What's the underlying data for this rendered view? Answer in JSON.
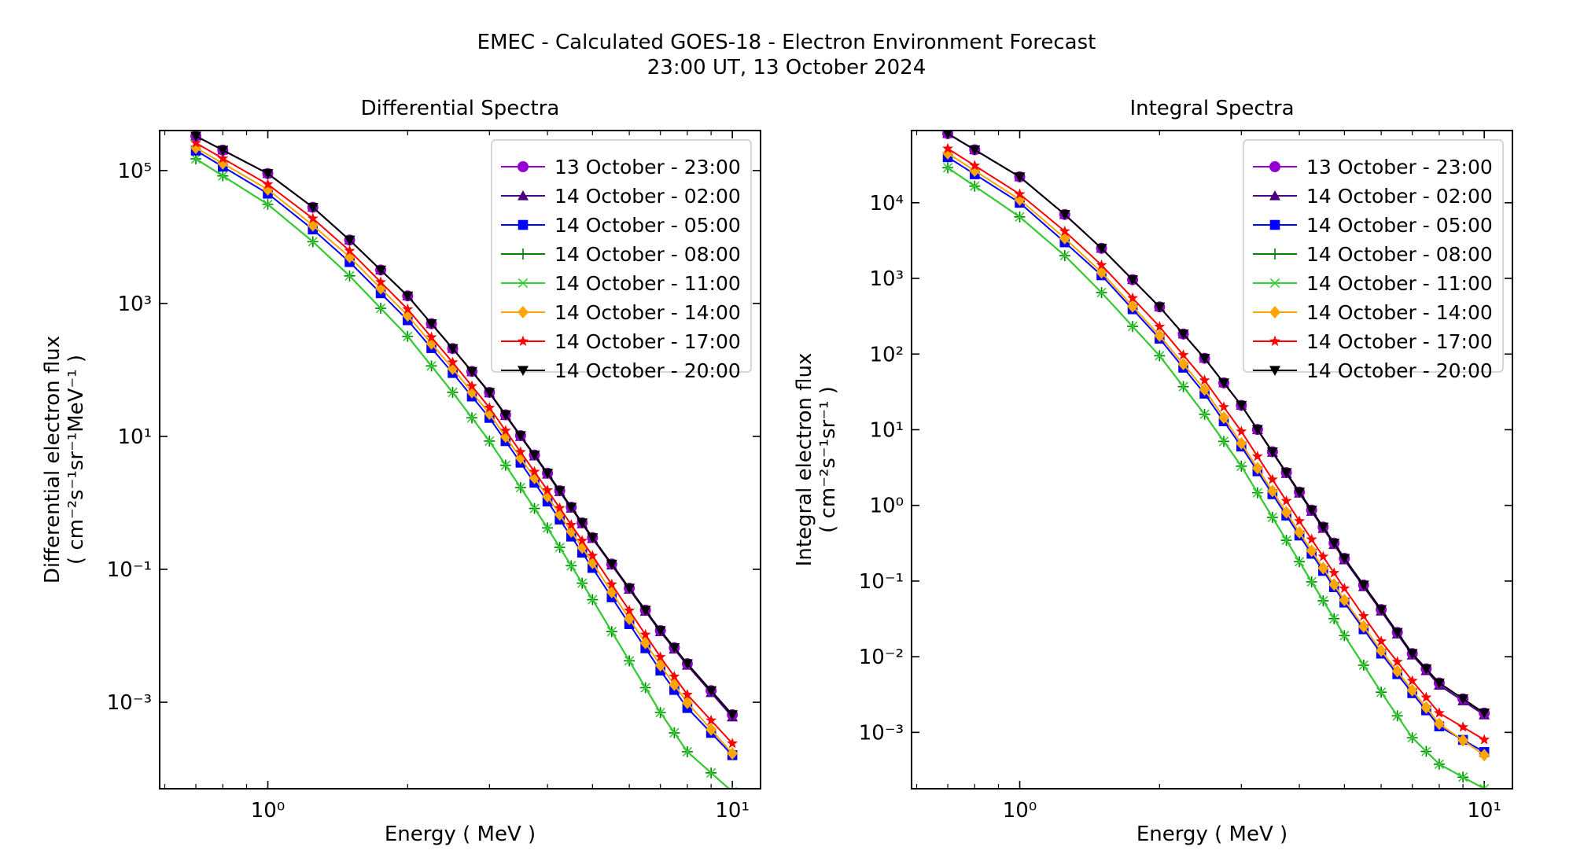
{
  "figure": {
    "title_line1": "EMEC - Calculated GOES-18 - Electron Environment Forecast",
    "title_line2": "23:00 UT, 13 October 2024"
  },
  "legend": [
    {
      "label": "13 October - 23:00",
      "color": "#9400d3",
      "marker": "circle"
    },
    {
      "label": "14 October - 02:00",
      "color": "#4b0082",
      "marker": "triangle-up"
    },
    {
      "label": "14 October - 05:00",
      "color": "#0000ff",
      "marker": "square"
    },
    {
      "label": "14 October - 08:00",
      "color": "#008000",
      "marker": "plus"
    },
    {
      "label": "14 October - 11:00",
      "color": "#32cd32",
      "marker": "x"
    },
    {
      "label": "14 October - 14:00",
      "color": "#ffa500",
      "marker": "diamond"
    },
    {
      "label": "14 October - 17:00",
      "color": "#ff0000",
      "marker": "star"
    },
    {
      "label": "14 October - 20:00",
      "color": "#000000",
      "marker": "triangle-down"
    }
  ],
  "chart_data": [
    {
      "type": "line",
      "title": "Differential Spectra",
      "xlabel": "Energy ( MeV )",
      "ylabel_line1": "Differential electron flux",
      "ylabel_line2": "( cm⁻²s⁻¹sr⁻¹MeV⁻¹ )",
      "xscale": "log",
      "yscale": "log",
      "xlim": [
        0.585,
        11.5
      ],
      "ylim": [
        5e-05,
        400000
      ],
      "xticks": [
        1,
        10
      ],
      "xtick_labels": [
        "10⁰",
        "10¹"
      ],
      "yticks": [
        0.001,
        0.1,
        10,
        1000,
        100000
      ],
      "ytick_labels": [
        "10⁻³",
        "10⁻¹",
        "10¹",
        "10³",
        "10⁵"
      ],
      "legend_position": "upper right",
      "x": [
        0.7,
        0.8,
        1.0,
        1.25,
        1.5,
        1.75,
        2.0,
        2.25,
        2.5,
        2.75,
        3.0,
        3.25,
        3.5,
        3.75,
        4.0,
        4.25,
        4.5,
        4.75,
        5.0,
        5.5,
        6.0,
        6.5,
        7.0,
        7.5,
        8.0,
        9.0,
        10.0
      ],
      "anchors": {
        "x": [
          0.7,
          1.0,
          1.25,
          1.5,
          2.0,
          2.5,
          3.0,
          4.0,
          5.0,
          6.0,
          7.0,
          8.0,
          10.0
        ],
        "series": [
          {
            "name": "13 October - 23:00",
            "y": [
              330000,
              90000,
              28000,
              9000,
              1300,
              210,
              46,
              2.8,
              0.3,
              0.052,
              0.012,
              0.0038,
              0.00065
            ]
          },
          {
            "name": "14 October - 02:00",
            "y": [
              330000,
              90000,
              28000,
              9000,
              1300,
              210,
              45,
              2.7,
              0.29,
              0.05,
              0.0115,
              0.0036,
              0.0006
            ]
          },
          {
            "name": "14 October - 05:00",
            "y": [
              200000,
              45000,
              13000,
              4200,
              560,
              90,
              19,
              1.05,
              0.105,
              0.015,
              0.003,
              0.00082,
              0.00016
            ]
          },
          {
            "name": "14 October - 08:00",
            "y": [
              150000,
              31000,
              8500,
              2600,
              320,
              46,
              8.5,
              0.42,
              0.035,
              0.0042,
              0.0007,
              0.00018,
              4.5e-05
            ]
          },
          {
            "name": "14 October - 11:00",
            "y": [
              150000,
              31000,
              8500,
              2600,
              320,
              46,
              8.5,
              0.42,
              0.035,
              0.0042,
              0.0007,
              0.00018,
              4.5e-05
            ]
          },
          {
            "name": "14 October - 14:00",
            "y": [
              220000,
              52000,
              15000,
              5000,
              660,
              105,
              22,
              1.25,
              0.125,
              0.018,
              0.0036,
              0.00098,
              0.00017
            ]
          },
          {
            "name": "14 October - 17:00",
            "y": [
              260000,
              62000,
              19000,
              6200,
              820,
              130,
              27,
              1.55,
              0.16,
              0.024,
              0.0048,
              0.0013,
              0.00024
            ]
          },
          {
            "name": "14 October - 20:00",
            "y": [
              330000,
              90000,
              28000,
              9000,
              1300,
              210,
              46,
              2.8,
              0.3,
              0.052,
              0.012,
              0.0038,
              0.00065
            ]
          }
        ]
      }
    },
    {
      "type": "line",
      "title": "Integral Spectra",
      "xlabel": "Energy ( MeV )",
      "ylabel_line1": "Integral electron flux",
      "ylabel_line2": "( cm⁻²s⁻¹sr⁻¹ )",
      "xscale": "log",
      "yscale": "log",
      "xlim": [
        0.585,
        11.5
      ],
      "ylim": [
        0.00018,
        90000
      ],
      "xticks": [
        1,
        10
      ],
      "xtick_labels": [
        "10⁰",
        "10¹"
      ],
      "yticks": [
        0.001,
        0.01,
        0.1,
        1,
        10,
        100,
        1000,
        10000
      ],
      "ytick_labels": [
        "10⁻³",
        "10⁻²",
        "10⁻¹",
        "10⁰",
        "10¹",
        "10²",
        "10³",
        "10⁴"
      ],
      "legend_position": "upper right",
      "x": [
        0.7,
        0.8,
        1.0,
        1.25,
        1.5,
        1.75,
        2.0,
        2.25,
        2.5,
        2.75,
        3.0,
        3.25,
        3.5,
        3.75,
        4.0,
        4.25,
        4.5,
        4.75,
        5.0,
        5.5,
        6.0,
        6.5,
        7.0,
        7.5,
        8.0,
        9.0,
        10.0
      ],
      "anchors": {
        "x": [
          0.7,
          1.0,
          1.25,
          1.5,
          2.0,
          2.5,
          3.0,
          4.0,
          5.0,
          6.0,
          7.0,
          8.0,
          10.0
        ],
        "series": [
          {
            "name": "13 October - 23:00",
            "y": [
              82000,
              22000,
              7000,
              2500,
              420,
              88,
              21,
              1.5,
              0.2,
              0.042,
              0.011,
              0.0045,
              0.0018
            ]
          },
          {
            "name": "14 October - 02:00",
            "y": [
              82000,
              22000,
              7000,
              2500,
              420,
              88,
              21,
              1.45,
              0.19,
              0.04,
              0.0105,
              0.0042,
              0.0017
            ]
          },
          {
            "name": "14 October - 05:00",
            "y": [
              40000,
              10000,
              3000,
              1100,
              160,
              30,
              6.0,
              0.4,
              0.052,
              0.011,
              0.0033,
              0.0012,
              0.00055
            ]
          },
          {
            "name": "14 October - 08:00",
            "y": [
              29000,
              6500,
              2000,
              650,
              95,
              16,
              3.3,
              0.18,
              0.019,
              0.0034,
              0.00085,
              0.00038,
              0.00018
            ]
          },
          {
            "name": "14 October - 11:00",
            "y": [
              29000,
              6500,
              2000,
              650,
              95,
              16,
              3.3,
              0.18,
              0.019,
              0.0034,
              0.00085,
              0.00038,
              0.00018
            ]
          },
          {
            "name": "14 October - 14:00",
            "y": [
              45000,
              11000,
              3400,
              1200,
              175,
              34,
              6.6,
              0.44,
              0.056,
              0.012,
              0.0036,
              0.0013,
              0.0005
            ]
          },
          {
            "name": "14 October - 17:00",
            "y": [
              52000,
              13000,
              4200,
              1500,
              230,
              45,
              9.5,
              0.62,
              0.08,
              0.016,
              0.0048,
              0.0018,
              0.0008
            ]
          },
          {
            "name": "14 October - 20:00",
            "y": [
              82000,
              22000,
              7000,
              2500,
              420,
              88,
              21,
              1.5,
              0.2,
              0.042,
              0.011,
              0.0045,
              0.0018
            ]
          }
        ]
      }
    }
  ]
}
